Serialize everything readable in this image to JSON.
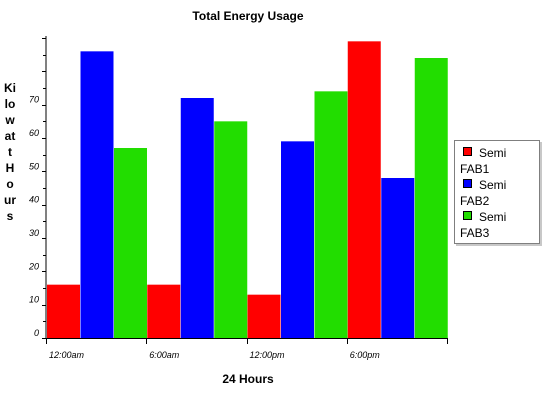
{
  "chart_data": {
    "type": "bar",
    "title": "Total Energy Usage",
    "xlabel": "24 Hours",
    "ylabel": "Kilowatt Hours",
    "categories": [
      "12:00am",
      "6:00am",
      "12:00pm",
      "6:00pm"
    ],
    "yticks": [
      0,
      10,
      20,
      30,
      40,
      50,
      60,
      70
    ],
    "ylim": [
      0,
      90
    ],
    "grid": false,
    "legend_position": "right",
    "series": [
      {
        "name": "Semi FAB1",
        "color": "#ff0000",
        "values": [
          16,
          16,
          13,
          89
        ]
      },
      {
        "name": "Semi FAB2",
        "color": "#0000ff",
        "values": [
          86,
          72,
          59,
          48
        ]
      },
      {
        "name": "Semi FAB3",
        "color": "#22dd00",
        "values": [
          57,
          65,
          74,
          84
        ]
      }
    ]
  }
}
